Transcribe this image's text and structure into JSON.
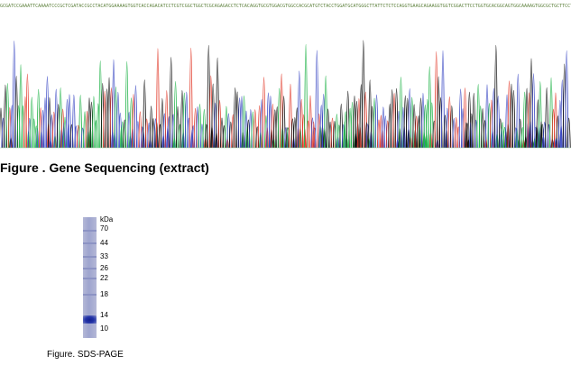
{
  "sequence": "GCGATCCGAAATTCAAAATCCCGCTCGATACCGCCTACATGGAAAAGTGGTCACCAGACATCCTCGTCGGCTGGCTCGCAGAGACCTCTCACAGGTGCGTGGACGTGGCCACGCATGTCTACCTGGATGCATGGGCTTATTCTCTCCAGGTGAAGCAGAAGGTGGTCGGACTTCCTGGTGCACGGCAGTGGCAAAAGTGGCGCTGCTTCCTGGGGCAAGGCATCGCGAACTGGCCGAAGTGCCGAGCGCATTGCC",
  "chromatogram": {
    "trace_colors": {
      "A": "#22b44a",
      "C": "#3b49c4",
      "G": "#111111",
      "T": "#e23a2a"
    }
  },
  "figure_seq": {
    "caption": "Figure . Gene Sequencing (extract)"
  },
  "gel": {
    "unit": "kDa",
    "markers": [
      "70",
      "44",
      "33",
      "26",
      "22",
      "18",
      "14",
      "10"
    ],
    "band_color": "#1c2aa0",
    "lane_color": "#a3a8d2"
  },
  "figure_gel": {
    "caption": "Figure. SDS-PAGE"
  }
}
